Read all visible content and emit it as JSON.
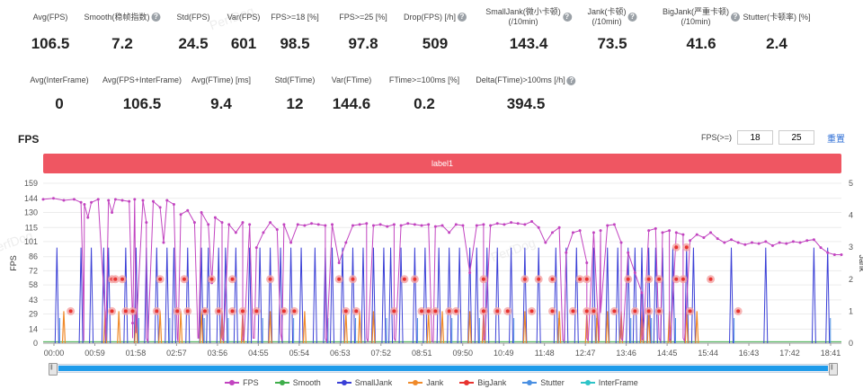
{
  "watermark": "PerfDog",
  "stats_row1": [
    {
      "label": "Avg(FPS)",
      "value": "106.5",
      "help": false
    },
    {
      "label": "Smooth(稳帧指数)",
      "value": "7.2",
      "help": true
    },
    {
      "label": "Std(FPS)",
      "value": "24.5",
      "help": false
    },
    {
      "label": "Var(FPS)",
      "value": "601",
      "help": false
    },
    {
      "label": "FPS>=18 [%]",
      "value": "98.5",
      "help": false
    },
    {
      "label": "FPS>=25 [%]",
      "value": "97.8",
      "help": false
    },
    {
      "label": "Drop(FPS) [/h]",
      "value": "509",
      "help": true
    },
    {
      "label": "SmallJank(微小卡顿)\n(/10min)",
      "value": "143.4",
      "help": true
    },
    {
      "label": "Jank(卡顿)\n(/10min)",
      "value": "73.5",
      "help": true
    },
    {
      "label": "BigJank(严重卡顿)\n(/10min)",
      "value": "41.6",
      "help": true
    },
    {
      "label": "Stutter(卡顿率) [%]",
      "value": "2.4",
      "help": false
    }
  ],
  "stats_row2": [
    {
      "label": "Avg(InterFrame)",
      "value": "0",
      "help": false
    },
    {
      "label": "Avg(FPS+InterFrame)",
      "value": "106.5",
      "help": false
    },
    {
      "label": "Avg(FTime) [ms]",
      "value": "9.4",
      "help": false
    },
    {
      "label": "Std(FTime)",
      "value": "12",
      "help": false
    },
    {
      "label": "Var(FTime)",
      "value": "144.6",
      "help": false
    },
    {
      "label": "FTime>=100ms [%]",
      "value": "0.2",
      "help": false
    },
    {
      "label": "Delta(FTime)>100ms [/h]",
      "value": "394.5",
      "help": true
    }
  ],
  "fps_section": {
    "title": "FPS",
    "threshold_label": "FPS(>=)",
    "threshold1": "18",
    "threshold2": "25",
    "reset_label": "重置",
    "label_band": "label1"
  },
  "chart_data": {
    "type": "line",
    "ylabel_left": "FPS",
    "ylabel_right": "Jank",
    "y_ticks": [
      0,
      14,
      29,
      43,
      58,
      72,
      86,
      101,
      115,
      130,
      144,
      159
    ],
    "y_right_ticks": [
      0,
      1,
      2,
      3,
      4,
      5
    ],
    "x_ticks": [
      "00:00",
      "00:59",
      "01:58",
      "02:57",
      "03:56",
      "04:55",
      "05:54",
      "06:53",
      "07:52",
      "08:51",
      "09:50",
      "10:49",
      "11:48",
      "12:47",
      "13:46",
      "14:45",
      "15:44",
      "16:43",
      "17:42",
      "18:41"
    ],
    "duration_s": 1160,
    "fps": [
      [
        0,
        143
      ],
      [
        15,
        144
      ],
      [
        30,
        142
      ],
      [
        45,
        143
      ],
      [
        55,
        140
      ],
      [
        60,
        138
      ],
      [
        65,
        125
      ],
      [
        70,
        140
      ],
      [
        80,
        143
      ],
      [
        95,
        142
      ],
      [
        100,
        130
      ],
      [
        105,
        143
      ],
      [
        115,
        142
      ],
      [
        125,
        141
      ],
      [
        130,
        20
      ],
      [
        133,
        143
      ],
      [
        145,
        142
      ],
      [
        150,
        120
      ],
      [
        160,
        141
      ],
      [
        170,
        135
      ],
      [
        175,
        100
      ],
      [
        180,
        142
      ],
      [
        190,
        138
      ],
      [
        200,
        128
      ],
      [
        210,
        132
      ],
      [
        220,
        120
      ],
      [
        230,
        130
      ],
      [
        240,
        118
      ],
      [
        245,
        60
      ],
      [
        250,
        125
      ],
      [
        260,
        120
      ],
      [
        270,
        118
      ],
      [
        280,
        110
      ],
      [
        290,
        120
      ],
      [
        300,
        118
      ],
      [
        310,
        95
      ],
      [
        320,
        110
      ],
      [
        330,
        120
      ],
      [
        340,
        113
      ],
      [
        350,
        118
      ],
      [
        360,
        100
      ],
      [
        370,
        118
      ],
      [
        380,
        117
      ],
      [
        390,
        119
      ],
      [
        400,
        118
      ],
      [
        410,
        117
      ],
      [
        420,
        118
      ],
      [
        430,
        80
      ],
      [
        440,
        100
      ],
      [
        450,
        117
      ],
      [
        460,
        118
      ],
      [
        470,
        119
      ],
      [
        480,
        117
      ],
      [
        490,
        118
      ],
      [
        500,
        116
      ],
      [
        510,
        118
      ],
      [
        520,
        117
      ],
      [
        530,
        119
      ],
      [
        540,
        118
      ],
      [
        550,
        117
      ],
      [
        560,
        118
      ],
      [
        570,
        116
      ],
      [
        580,
        117
      ],
      [
        590,
        110
      ],
      [
        600,
        118
      ],
      [
        610,
        117
      ],
      [
        620,
        70
      ],
      [
        630,
        117
      ],
      [
        640,
        118
      ],
      [
        650,
        117
      ],
      [
        660,
        119
      ],
      [
        670,
        118
      ],
      [
        680,
        120
      ],
      [
        690,
        119
      ],
      [
        700,
        118
      ],
      [
        710,
        121
      ],
      [
        720,
        115
      ],
      [
        730,
        100
      ],
      [
        740,
        110
      ],
      [
        750,
        115
      ],
      [
        760,
        90
      ],
      [
        770,
        110
      ],
      [
        780,
        112
      ],
      [
        790,
        80
      ],
      [
        800,
        110
      ],
      [
        810,
        112
      ],
      [
        820,
        117
      ],
      [
        830,
        118
      ],
      [
        840,
        100
      ],
      [
        850,
        90
      ],
      [
        860,
        70
      ],
      [
        870,
        50
      ],
      [
        880,
        112
      ],
      [
        890,
        114
      ],
      [
        900,
        110
      ],
      [
        910,
        112
      ],
      [
        920,
        110
      ],
      [
        930,
        108
      ],
      [
        940,
        102
      ],
      [
        950,
        108
      ],
      [
        960,
        105
      ],
      [
        970,
        110
      ],
      [
        980,
        104
      ],
      [
        990,
        100
      ],
      [
        1000,
        103
      ],
      [
        1010,
        100
      ],
      [
        1020,
        98
      ],
      [
        1030,
        100
      ],
      [
        1040,
        99
      ],
      [
        1050,
        101
      ],
      [
        1060,
        97
      ],
      [
        1070,
        100
      ],
      [
        1080,
        99
      ],
      [
        1090,
        101
      ],
      [
        1100,
        100
      ],
      [
        1110,
        102
      ],
      [
        1120,
        103
      ],
      [
        1130,
        95
      ],
      [
        1140,
        90
      ],
      [
        1150,
        88
      ],
      [
        1160,
        88
      ]
    ],
    "drops": [
      [
        58,
        60
      ],
      [
        59,
        2
      ],
      [
        90,
        30
      ],
      [
        91,
        3
      ],
      [
        130,
        5
      ],
      [
        135,
        10
      ],
      [
        150,
        5
      ],
      [
        152,
        1
      ],
      [
        195,
        5
      ],
      [
        196,
        1
      ],
      [
        225,
        5
      ],
      [
        226,
        5
      ],
      [
        260,
        5
      ],
      [
        262,
        2
      ],
      [
        290,
        2
      ],
      [
        292,
        5
      ],
      [
        305,
        5
      ],
      [
        307,
        5
      ],
      [
        345,
        10
      ],
      [
        347,
        2
      ],
      [
        410,
        5
      ],
      [
        412,
        1
      ],
      [
        470,
        5
      ],
      [
        472,
        1
      ],
      [
        510,
        5
      ],
      [
        512,
        2
      ],
      [
        565,
        2
      ],
      [
        567,
        1
      ],
      [
        640,
        3
      ],
      [
        642,
        5
      ],
      [
        755,
        3
      ],
      [
        757,
        2
      ],
      [
        790,
        5
      ],
      [
        792,
        2
      ],
      [
        808,
        2
      ],
      [
        810,
        30
      ],
      [
        840,
        5
      ],
      [
        842,
        2
      ],
      [
        870,
        3
      ],
      [
        872,
        5
      ],
      [
        895,
        5
      ],
      [
        897,
        2
      ],
      [
        910,
        2
      ],
      [
        912,
        5
      ],
      [
        930,
        5
      ],
      [
        932,
        2
      ]
    ],
    "smooth_level": 1.5,
    "smalljank_spikes": [
      20,
      55,
      70,
      88,
      95,
      120,
      135,
      150,
      165,
      180,
      190,
      210,
      230,
      240,
      255,
      265,
      280,
      300,
      315,
      330,
      345,
      360,
      375,
      395,
      410,
      420,
      435,
      450,
      465,
      480,
      495,
      505,
      520,
      540,
      555,
      575,
      590,
      605,
      620,
      630,
      645,
      660,
      680,
      700,
      720,
      745,
      760,
      775,
      800,
      820,
      835,
      850,
      860,
      870,
      880,
      890,
      900,
      915,
      935,
      945,
      1000,
      1050,
      1120,
      1140
    ],
    "jank_spikes": [
      30,
      90,
      110,
      135,
      170,
      200,
      230,
      260,
      290,
      330,
      380,
      440,
      460,
      480,
      560,
      580,
      620,
      640,
      700,
      750,
      790,
      805,
      820,
      840,
      870,
      880,
      910,
      935,
      950
    ],
    "bigjank_markers_y1": [
      40,
      100,
      120,
      130,
      165,
      195,
      210,
      235,
      255,
      275,
      290,
      310,
      350,
      365,
      440,
      455,
      510,
      550,
      560,
      570,
      590,
      600,
      640,
      660,
      675,
      710,
      740,
      770,
      790,
      800,
      830,
      860,
      880,
      895,
      940,
      1010
    ],
    "bigjank_markers_y2": [
      100,
      105,
      115,
      170,
      205,
      245,
      275,
      330,
      430,
      450,
      525,
      540,
      640,
      700,
      720,
      740,
      780,
      790,
      850,
      880,
      895,
      920,
      930,
      970
    ],
    "bigjank_markers_y3": [
      920,
      935
    ]
  },
  "legend": [
    {
      "name": "FPS",
      "color": "#c244c0"
    },
    {
      "name": "Smooth",
      "color": "#3fae4b"
    },
    {
      "name": "SmallJank",
      "color": "#3a3fd6"
    },
    {
      "name": "Jank",
      "color": "#f08a2a"
    },
    {
      "name": "BigJank",
      "color": "#e8332f"
    },
    {
      "name": "Stutter",
      "color": "#4a90e2"
    },
    {
      "name": "InterFrame",
      "color": "#2ec4c8"
    }
  ]
}
